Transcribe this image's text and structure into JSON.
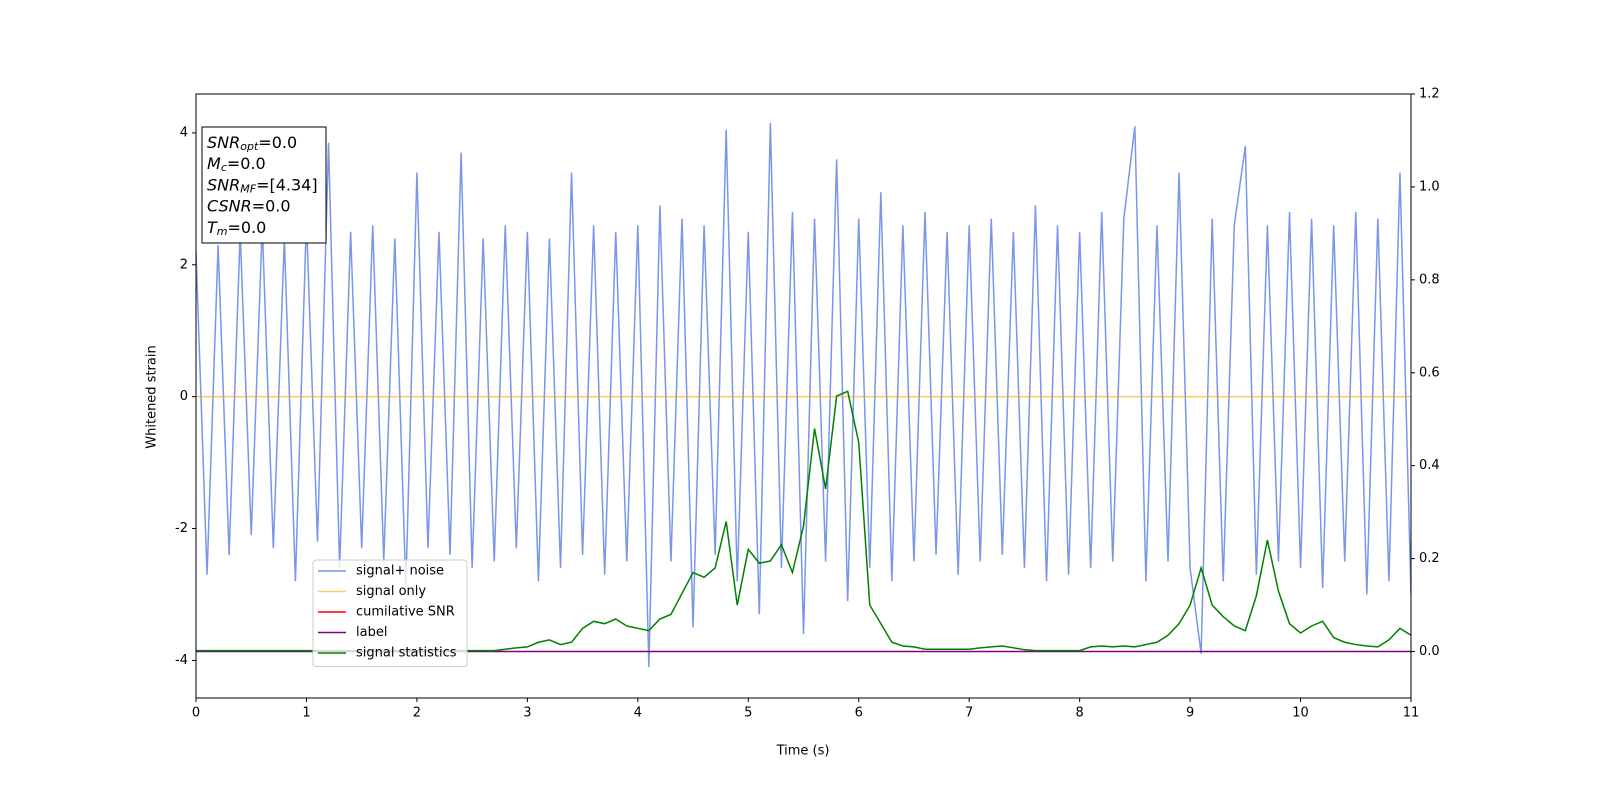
{
  "chart_data": {
    "type": "line",
    "xlabel": "Time (s)",
    "ylabel": "Whitened strain",
    "x": [
      0,
      0.1,
      0.2,
      0.3,
      0.4,
      0.5,
      0.6,
      0.7,
      0.8,
      0.9,
      1,
      1.1,
      1.2,
      1.3,
      1.4,
      1.5,
      1.6,
      1.7,
      1.8,
      1.9,
      2,
      2.1,
      2.2,
      2.3,
      2.4,
      2.5,
      2.6,
      2.7,
      2.8,
      2.9,
      3,
      3.1,
      3.2,
      3.3,
      3.4,
      3.5,
      3.6,
      3.7,
      3.8,
      3.9,
      4,
      4.1,
      4.2,
      4.3,
      4.4,
      4.5,
      4.6,
      4.7,
      4.8,
      4.9,
      5,
      5.1,
      5.2,
      5.3,
      5.4,
      5.5,
      5.6,
      5.7,
      5.8,
      5.9,
      6,
      6.1,
      6.2,
      6.3,
      6.4,
      6.5,
      6.6,
      6.7,
      6.8,
      6.9,
      7,
      7.1,
      7.2,
      7.3,
      7.4,
      7.5,
      7.6,
      7.7,
      7.8,
      7.9,
      8,
      8.1,
      8.2,
      8.3,
      8.4,
      8.5,
      8.6,
      8.7,
      8.8,
      8.9,
      9,
      9.1,
      9.2,
      9.3,
      9.4,
      9.5,
      9.6,
      9.7,
      9.8,
      9.9,
      10,
      10.1,
      10.2,
      10.3,
      10.4,
      10.5,
      10.6,
      10.7,
      10.8,
      10.9,
      11
    ],
    "series": [
      {
        "name": "signal+ noise",
        "color": "#4169e1",
        "opacity": 0.7,
        "values": [
          2.2,
          -2.7,
          2.3,
          -2.4,
          2.5,
          -2.1,
          2.6,
          -2.3,
          2.4,
          -2.8,
          2.7,
          -2.2,
          3.85,
          -2.6,
          2.5,
          -2.3,
          2.6,
          -2.5,
          2.4,
          -2.9,
          3.4,
          -2.3,
          2.5,
          -2.4,
          3.7,
          -2.6,
          2.4,
          -2.5,
          2.6,
          -2.3,
          2.5,
          -2.8,
          2.4,
          -2.6,
          3.4,
          -2.4,
          2.6,
          -2.7,
          2.5,
          -2.5,
          2.6,
          -4.1,
          2.9,
          -2.5,
          2.7,
          -3.5,
          2.6,
          -2.4,
          4.05,
          -2.8,
          2.5,
          -3.3,
          4.15,
          -2.6,
          2.8,
          -3.6,
          2.7,
          -2.5,
          3.6,
          -3.1,
          2.7,
          -2.6,
          3.1,
          -2.8,
          2.6,
          -2.5,
          2.8,
          -2.4,
          2.5,
          -2.7,
          2.6,
          -2.5,
          2.7,
          -2.4,
          2.5,
          -2.6,
          2.9,
          -2.8,
          2.6,
          -2.7,
          2.5,
          -2.6,
          2.8,
          -2.5,
          2.7,
          4.1,
          -2.8,
          2.6,
          -2.5,
          3.4,
          -2.6,
          -3.9,
          2.7,
          -2.8,
          2.6,
          3.8,
          -2.7,
          2.6,
          -2.5,
          2.8,
          -2.6,
          2.7,
          -2.9,
          2.6,
          -2.5,
          2.8,
          -3.0,
          2.7,
          -2.8,
          3.4,
          -3.0
        ]
      },
      {
        "name": "signal only",
        "color": "#ffa500",
        "opacity": 0.6,
        "x": [
          0,
          11
        ],
        "values": [
          0,
          0
        ]
      },
      {
        "name": "cumilative SNR",
        "color": "#ff0000",
        "x": [],
        "values": []
      },
      {
        "name": "label",
        "color": "#800080",
        "axis": "y2",
        "x": [
          0,
          11
        ],
        "values": [
          0,
          0
        ]
      },
      {
        "name": "signal statistics",
        "color": "#008000",
        "axis": "y2",
        "values": [
          0.002,
          0.002,
          0.002,
          0.002,
          0.002,
          0.002,
          0.002,
          0.002,
          0.002,
          0.002,
          0.002,
          0.002,
          0.002,
          0.002,
          0.002,
          0.002,
          0.002,
          0.002,
          0.002,
          0.002,
          0.002,
          0.002,
          0.002,
          0.002,
          0.002,
          0.002,
          0.002,
          0.002,
          0.005,
          0.008,
          0.01,
          0.02,
          0.025,
          0.015,
          0.02,
          0.05,
          0.065,
          0.06,
          0.07,
          0.055,
          0.05,
          0.045,
          0.07,
          0.08,
          0.125,
          0.17,
          0.16,
          0.18,
          0.28,
          0.1,
          0.22,
          0.19,
          0.195,
          0.23,
          0.17,
          0.27,
          0.48,
          0.35,
          0.55,
          0.56,
          0.45,
          0.1,
          0.06,
          0.02,
          0.012,
          0.01,
          0.005,
          0.005,
          0.005,
          0.005,
          0.005,
          0.008,
          0.01,
          0.012,
          0.008,
          0.004,
          0.002,
          0.002,
          0.002,
          0.002,
          0.002,
          0.01,
          0.012,
          0.01,
          0.012,
          0.01,
          0.015,
          0.02,
          0.035,
          0.06,
          0.1,
          0.18,
          0.1,
          0.075,
          0.055,
          0.045,
          0.12,
          0.24,
          0.13,
          0.06,
          0.04,
          0.055,
          0.065,
          0.03,
          0.02,
          0.015,
          0.012,
          0.01,
          0.025,
          0.05,
          0.035
        ]
      }
    ],
    "xlim": [
      0,
      11
    ],
    "xticks": [
      0,
      1,
      2,
      3,
      4,
      5,
      6,
      7,
      8,
      9,
      10,
      11
    ],
    "ylim": [
      -4.57,
      4.59
    ],
    "yticks": [
      -4,
      -2,
      0,
      2,
      4
    ],
    "y2lim": [
      -0.1,
      1.2
    ],
    "y2ticks": [
      {
        "value": 0,
        "label": "0.0"
      },
      0.2,
      0.4,
      0.6,
      0.8,
      {
        "value": 1,
        "label": "1.0"
      },
      1.2
    ],
    "legend": "lower left",
    "annotation": [
      {
        "text": "SNR",
        "sub": "opt",
        "rest": "=0.0"
      },
      {
        "text": "M",
        "sub": "c",
        "rest": "=0.0"
      },
      {
        "text": "SNR",
        "sub": "MF",
        "rest": "=[4.34]"
      },
      {
        "text": "CSNR",
        "rest": "=0.0"
      },
      {
        "text": "T",
        "sub": "m",
        "rest": "=0.0"
      }
    ]
  }
}
